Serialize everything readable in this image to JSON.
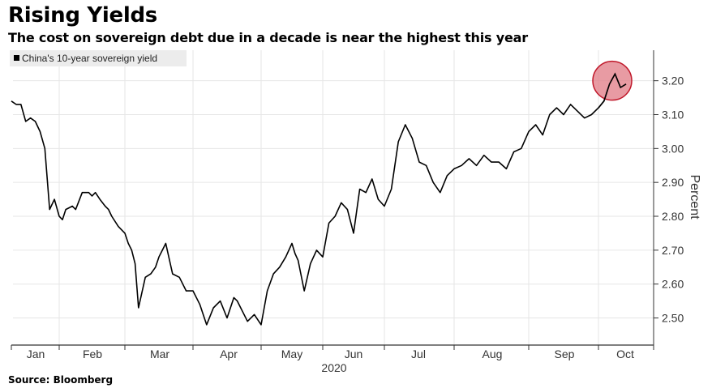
{
  "header": {
    "title": "Rising Yields",
    "subtitle": "The cost on sovereign debt due in a decade is near the highest this year"
  },
  "footer": {
    "source": "Source: Bloomberg"
  },
  "colors": {
    "line": "#000000",
    "grid": "#e6e6e6",
    "highlight_fill": "#e07a84",
    "highlight_stroke": "#c0192b",
    "legend_bg": "#ececec"
  },
  "chart_data": {
    "type": "line",
    "title": "Rising Yields",
    "subtitle": "The cost on sovereign debt due in a decade is near the highest this year",
    "xlabel": "2020",
    "ylabel": "Percent",
    "ylim": [
      2.42,
      3.29
    ],
    "grid": true,
    "legend_position": "top-left",
    "y_ticks": [
      "3.20",
      "3.10",
      "3.00",
      "2.90",
      "2.80",
      "2.70",
      "2.60",
      "2.50"
    ],
    "x_ticks": [
      "Jan",
      "Feb",
      "Mar",
      "Apr",
      "May",
      "Jun",
      "Jul",
      "Aug",
      "Sep",
      "Oct"
    ],
    "x_year_label": "2020",
    "series": [
      {
        "name": "China's 10-year sovereign yield",
        "x": [
          0.0,
          0.1,
          0.2,
          0.3,
          0.4,
          0.5,
          0.6,
          0.7,
          0.8,
          0.9,
          1.0,
          1.05,
          1.1,
          1.2,
          1.25,
          1.35,
          1.45,
          1.5,
          1.55,
          1.62,
          1.7,
          1.75,
          1.8,
          1.9,
          2.0,
          2.05,
          2.1,
          2.15,
          2.2,
          2.3,
          2.38,
          2.45,
          2.5,
          2.55,
          2.6,
          2.7,
          2.8,
          2.9,
          3.0,
          3.1,
          3.2,
          3.3,
          3.4,
          3.5,
          3.6,
          3.65,
          3.7,
          3.8,
          3.9,
          4.0,
          4.1,
          4.2,
          4.3,
          4.4,
          4.5,
          4.55,
          4.6,
          4.7,
          4.8,
          4.9,
          5.0,
          5.1,
          5.2,
          5.3,
          5.4,
          5.5,
          5.6,
          5.7,
          5.8,
          5.9,
          6.0,
          6.1,
          6.2,
          6.3,
          6.4,
          6.5,
          6.6,
          6.7,
          6.8,
          6.9,
          7.0,
          7.1,
          7.2,
          7.3,
          7.4,
          7.5,
          7.6,
          7.7,
          7.8,
          7.9,
          8.0,
          8.1,
          8.2,
          8.3,
          8.4,
          8.5,
          8.6,
          8.7,
          8.8,
          8.9,
          9.0,
          9.1,
          9.2,
          9.3,
          9.4,
          9.5
        ],
        "values": [
          3.14,
          3.13,
          3.13,
          3.08,
          3.09,
          3.08,
          3.05,
          3.0,
          2.82,
          2.85,
          2.8,
          2.79,
          2.82,
          2.83,
          2.82,
          2.87,
          2.87,
          2.86,
          2.87,
          2.85,
          2.83,
          2.82,
          2.8,
          2.77,
          2.75,
          2.72,
          2.7,
          2.66,
          2.53,
          2.62,
          2.63,
          2.65,
          2.68,
          2.7,
          2.72,
          2.63,
          2.62,
          2.58,
          2.58,
          2.54,
          2.48,
          2.53,
          2.55,
          2.5,
          2.56,
          2.55,
          2.53,
          2.49,
          2.51,
          2.48,
          2.58,
          2.63,
          2.65,
          2.68,
          2.72,
          2.69,
          2.67,
          2.58,
          2.66,
          2.7,
          2.68,
          2.78,
          2.8,
          2.84,
          2.82,
          2.75,
          2.88,
          2.87,
          2.91,
          2.85,
          2.83,
          2.88,
          3.02,
          3.07,
          3.03,
          2.96,
          2.95,
          2.9,
          2.87,
          2.92,
          2.94,
          2.95,
          2.97,
          2.95,
          2.98,
          2.96,
          2.96,
          2.94,
          2.99,
          3.0,
          3.05,
          3.07,
          3.04,
          3.1,
          3.12,
          3.1,
          3.13,
          3.11,
          3.09,
          3.1,
          3.12,
          3.14,
          3.19,
          3.22,
          3.18,
          3.19
        ]
      }
    ],
    "annotations": [
      {
        "type": "circle",
        "label": "",
        "x": 9.25,
        "y": 3.2
      }
    ]
  }
}
